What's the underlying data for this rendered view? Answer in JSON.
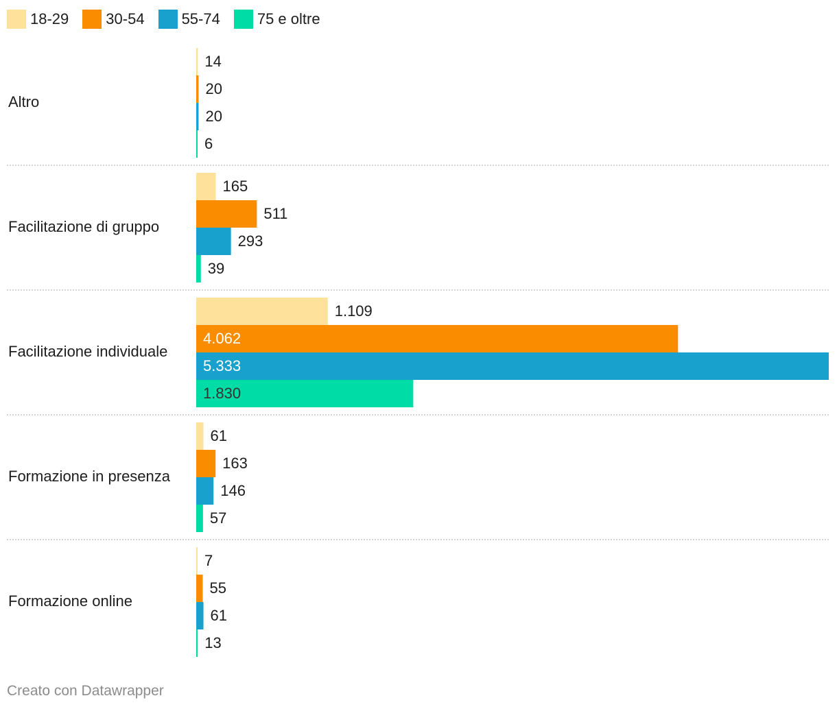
{
  "legend": [
    {
      "label": "18-29",
      "color": "#fee29c"
    },
    {
      "label": "30-54",
      "color": "#fa8c00"
    },
    {
      "label": "55-74",
      "color": "#18a1cd"
    },
    {
      "label": "75 e oltre",
      "color": "#00dca6"
    }
  ],
  "chart_data": {
    "type": "bar",
    "orientation": "horizontal",
    "grouped": true,
    "categories": [
      "Altro",
      "Facilitazione di gruppo",
      "Facilitazione individuale",
      "Formazione in presenza",
      "Formazione online"
    ],
    "series": [
      {
        "name": "18-29",
        "color": "#fee29c",
        "values": [
          14,
          165,
          1109,
          61,
          7
        ],
        "labels": [
          "14",
          "165",
          "1.109",
          "61",
          "7"
        ]
      },
      {
        "name": "30-54",
        "color": "#fa8c00",
        "values": [
          20,
          511,
          4062,
          163,
          55
        ],
        "labels": [
          "20",
          "511",
          "4.062",
          "163",
          "55"
        ]
      },
      {
        "name": "55-74",
        "color": "#18a1cd",
        "values": [
          20,
          293,
          5333,
          146,
          61
        ],
        "labels": [
          "20",
          "293",
          "5.333",
          "146",
          "61"
        ]
      },
      {
        "name": "75 e oltre",
        "color": "#00dca6",
        "values": [
          6,
          39,
          1830,
          57,
          13
        ],
        "labels": [
          "6",
          "39",
          "1.830",
          "57",
          "13"
        ]
      }
    ],
    "xlim": [
      0,
      5333
    ],
    "label_colors": {
      "dark": "#1d1d1d",
      "light": "#ffffff",
      "on_pale": "#333333"
    }
  },
  "footer": {
    "credit": "Creato con Datawrapper"
  }
}
